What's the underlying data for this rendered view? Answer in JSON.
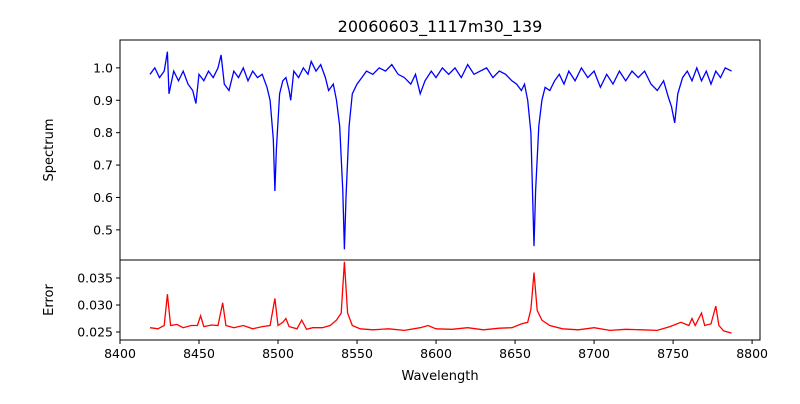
{
  "chart_data": [
    {
      "type": "line",
      "title": "20060603_1117m30_139",
      "xlabel": "",
      "ylabel": "Spectrum",
      "xlim": [
        8400,
        8805
      ],
      "ylim": [
        0.407,
        1.086
      ],
      "yticks": [
        0.5,
        0.6,
        0.7,
        0.8,
        0.9,
        1.0
      ],
      "ytick_labels": [
        "0.5",
        "0.6",
        "0.7",
        "0.8",
        "0.9",
        "1.0"
      ],
      "grid": false,
      "color": "#0000ff",
      "x": [
        8419,
        8422,
        8425,
        8428,
        8430,
        8431,
        8434,
        8437,
        8440,
        8443,
        8446,
        8448,
        8450,
        8453,
        8456,
        8459,
        8462,
        8464,
        8466,
        8469,
        8472,
        8475,
        8478,
        8481,
        8484,
        8487,
        8490,
        8493,
        8495,
        8497,
        8498,
        8499,
        8501,
        8503,
        8505,
        8507,
        8508,
        8510,
        8513,
        8516,
        8519,
        8521,
        8524,
        8527,
        8530,
        8532,
        8535,
        8537,
        8539,
        8541,
        8542,
        8543,
        8545,
        8547,
        8550,
        8553,
        8556,
        8560,
        8564,
        8568,
        8572,
        8576,
        8580,
        8584,
        8587,
        8590,
        8593,
        8597,
        8600,
        8604,
        8608,
        8612,
        8616,
        8620,
        8624,
        8628,
        8632,
        8636,
        8640,
        8644,
        8648,
        8651,
        8654,
        8656,
        8658,
        8660,
        8662,
        8663,
        8665,
        8667,
        8669,
        8672,
        8675,
        8678,
        8681,
        8684,
        8688,
        8692,
        8696,
        8700,
        8704,
        8708,
        8712,
        8716,
        8720,
        8724,
        8728,
        8732,
        8736,
        8740,
        8744,
        8747,
        8749,
        8751,
        8753,
        8756,
        8759,
        8762,
        8765,
        8768,
        8771,
        8774,
        8777,
        8780,
        8783,
        8787
      ],
      "y": [
        0.98,
        1.0,
        0.97,
        0.99,
        1.05,
        0.92,
        0.99,
        0.96,
        0.99,
        0.95,
        0.93,
        0.89,
        0.98,
        0.96,
        0.99,
        0.97,
        1.0,
        1.04,
        0.95,
        0.93,
        0.99,
        0.97,
        1.0,
        0.96,
        0.99,
        0.97,
        0.98,
        0.94,
        0.9,
        0.78,
        0.62,
        0.75,
        0.92,
        0.96,
        0.97,
        0.93,
        0.9,
        0.99,
        0.97,
        1.0,
        0.98,
        1.02,
        0.99,
        1.01,
        0.97,
        0.93,
        0.95,
        0.9,
        0.82,
        0.62,
        0.44,
        0.6,
        0.82,
        0.92,
        0.95,
        0.97,
        0.99,
        0.98,
        1.0,
        0.99,
        1.01,
        0.98,
        0.97,
        0.95,
        0.98,
        0.92,
        0.96,
        0.99,
        0.97,
        1.0,
        0.98,
        1.0,
        0.97,
        1.01,
        0.98,
        0.99,
        1.0,
        0.97,
        0.99,
        0.98,
        0.96,
        0.95,
        0.93,
        0.95,
        0.9,
        0.8,
        0.45,
        0.62,
        0.82,
        0.9,
        0.94,
        0.93,
        0.96,
        0.98,
        0.95,
        0.99,
        0.96,
        1.0,
        0.97,
        0.99,
        0.94,
        0.98,
        0.95,
        0.99,
        0.96,
        0.99,
        0.97,
        0.99,
        0.95,
        0.93,
        0.96,
        0.91,
        0.88,
        0.83,
        0.92,
        0.97,
        0.99,
        0.96,
        1.0,
        0.96,
        0.99,
        0.95,
        0.99,
        0.97,
        1.0,
        0.99
      ]
    },
    {
      "type": "line",
      "title": "",
      "xlabel": "Wavelength",
      "ylabel": "Error",
      "xlim": [
        8400,
        8805
      ],
      "ylim": [
        0.02352,
        0.03833
      ],
      "xticks": [
        8400,
        8450,
        8500,
        8550,
        8600,
        8650,
        8700,
        8750,
        8800
      ],
      "xtick_labels": [
        "8400",
        "8450",
        "8500",
        "8550",
        "8600",
        "8650",
        "8700",
        "8750",
        "8800"
      ],
      "yticks": [
        0.025,
        0.03,
        0.035
      ],
      "ytick_labels": [
        "0.025",
        "0.030",
        "0.035"
      ],
      "grid": false,
      "color": "#ff0000",
      "x": [
        8419,
        8424,
        8428,
        8430,
        8432,
        8436,
        8440,
        8445,
        8449,
        8451,
        8453,
        8458,
        8462,
        8465,
        8467,
        8472,
        8478,
        8484,
        8490,
        8495,
        8498,
        8500,
        8503,
        8505,
        8507,
        8512,
        8515,
        8518,
        8522,
        8528,
        8533,
        8537,
        8540,
        8542,
        8544,
        8547,
        8552,
        8560,
        8570,
        8580,
        8590,
        8595,
        8600,
        8610,
        8620,
        8630,
        8640,
        8648,
        8654,
        8658,
        8660,
        8662,
        8664,
        8667,
        8672,
        8680,
        8690,
        8700,
        8710,
        8720,
        8730,
        8740,
        8748,
        8755,
        8760,
        8762,
        8764,
        8768,
        8770,
        8774,
        8777,
        8779,
        8782,
        8787
      ],
      "y": [
        0.0258,
        0.0256,
        0.0262,
        0.032,
        0.0262,
        0.0264,
        0.0258,
        0.0262,
        0.0262,
        0.028,
        0.026,
        0.0263,
        0.0262,
        0.0304,
        0.0262,
        0.0258,
        0.0262,
        0.0256,
        0.026,
        0.0262,
        0.0312,
        0.0262,
        0.0268,
        0.0275,
        0.026,
        0.0256,
        0.0272,
        0.0255,
        0.0258,
        0.0258,
        0.0262,
        0.0272,
        0.0285,
        0.038,
        0.0285,
        0.0262,
        0.0256,
        0.0254,
        0.0256,
        0.0253,
        0.0258,
        0.0262,
        0.0256,
        0.0255,
        0.0258,
        0.0254,
        0.0257,
        0.0258,
        0.0265,
        0.0268,
        0.0292,
        0.036,
        0.029,
        0.0272,
        0.0262,
        0.0256,
        0.0254,
        0.0258,
        0.0253,
        0.0255,
        0.0254,
        0.0253,
        0.026,
        0.0268,
        0.0262,
        0.0275,
        0.0262,
        0.0285,
        0.0262,
        0.0265,
        0.0298,
        0.0262,
        0.0252,
        0.0248
      ]
    }
  ]
}
